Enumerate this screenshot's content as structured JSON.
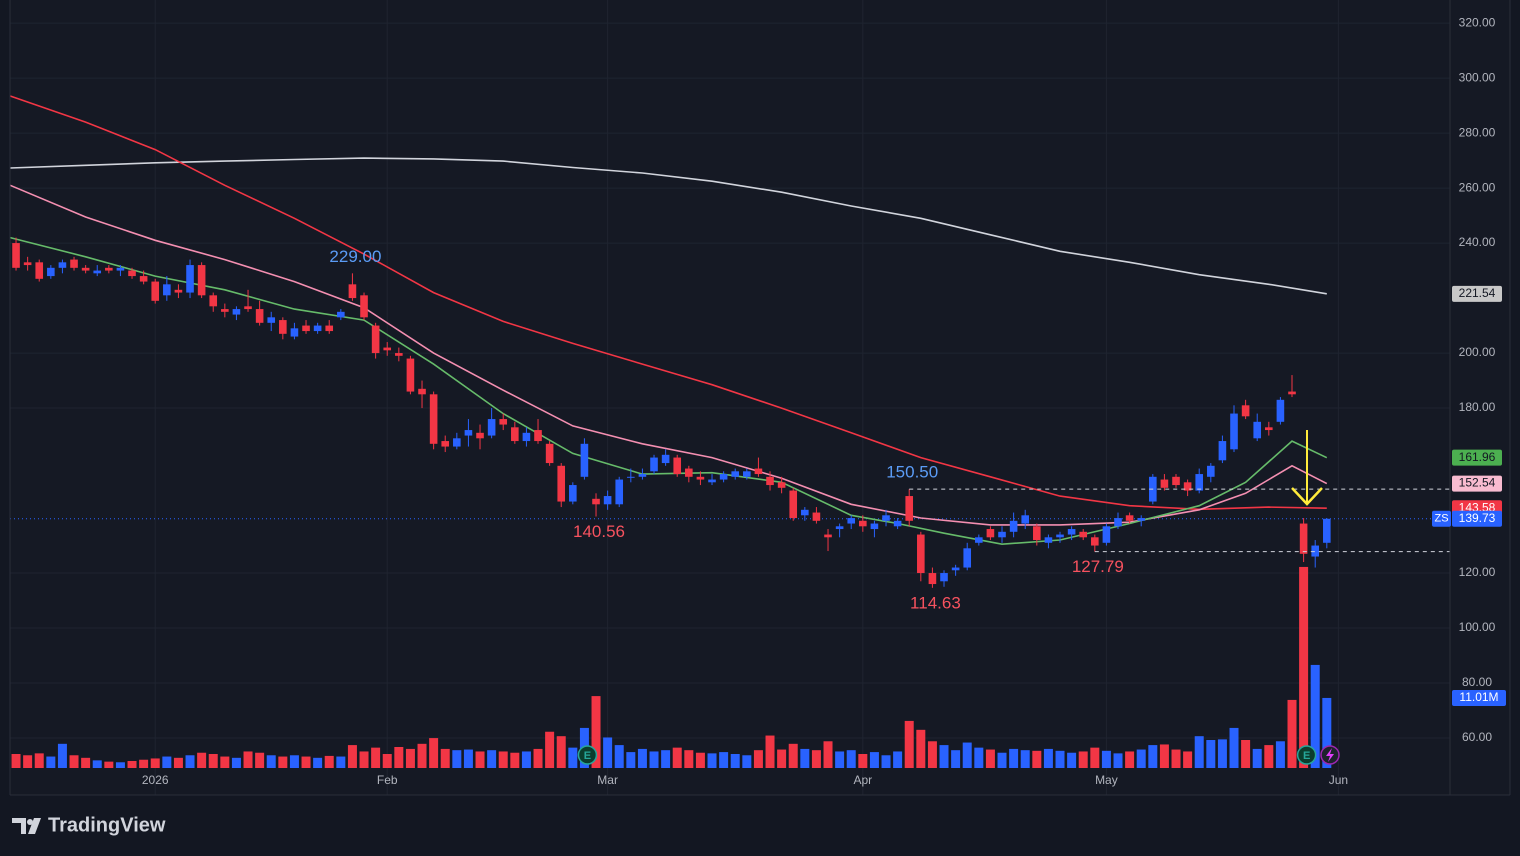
{
  "chart_data": {
    "type": "candlestick",
    "symbol": "ZS",
    "brand": "TradingView",
    "up_color": "#2962ff",
    "down_color": "#f23645",
    "grid": true,
    "xlim": [
      -0.52,
      123.62
    ],
    "xticks": [
      {
        "value": 12,
        "label": "2026"
      },
      {
        "value": 32,
        "label": "Feb"
      },
      {
        "value": 51,
        "label": "Mar"
      },
      {
        "value": 73,
        "label": "Apr"
      },
      {
        "value": 94,
        "label": "May"
      },
      {
        "value": 114,
        "label": "Jun"
      }
    ],
    "ylim": [
      49.1,
      328.4
    ],
    "yticks": [
      {
        "value": 320,
        "label": "320.00"
      },
      {
        "value": 300,
        "label": "300.00"
      },
      {
        "value": 280,
        "label": "280.00"
      },
      {
        "value": 260,
        "label": "260.00"
      },
      {
        "value": 240,
        "label": "240.00"
      },
      {
        "value": 200,
        "label": "200.00"
      },
      {
        "value": 180,
        "label": "180.00"
      },
      {
        "value": 120,
        "label": "120.00"
      },
      {
        "value": 100,
        "label": "100.00"
      },
      {
        "value": 80,
        "label": "80.00"
      },
      {
        "value": 60,
        "label": "60.00"
      }
    ],
    "candles": [
      [
        240,
        242,
        230,
        231
      ],
      [
        233,
        235,
        230,
        232
      ],
      [
        233,
        234,
        226,
        227
      ],
      [
        228,
        232,
        227,
        231
      ],
      [
        231,
        234,
        229,
        233
      ],
      [
        234,
        235,
        230,
        231
      ],
      [
        231,
        232,
        229,
        230
      ],
      [
        229,
        232,
        228,
        230
      ],
      [
        231,
        232,
        229,
        230
      ],
      [
        230,
        232,
        228,
        231
      ],
      [
        230,
        231,
        227,
        228
      ],
      [
        228,
        230,
        225,
        226
      ],
      [
        226,
        227,
        218,
        219
      ],
      [
        221,
        228,
        219,
        225
      ],
      [
        223,
        225,
        220,
        222
      ],
      [
        222,
        234,
        220,
        232
      ],
      [
        232,
        233,
        220,
        221
      ],
      [
        221,
        222,
        215,
        217
      ],
      [
        216,
        218,
        213,
        215
      ],
      [
        214,
        217,
        212,
        216
      ],
      [
        217,
        223,
        215,
        216
      ],
      [
        216,
        219,
        210,
        211
      ],
      [
        211,
        215,
        208,
        213
      ],
      [
        212,
        213,
        205,
        207
      ],
      [
        206,
        211,
        205,
        209
      ],
      [
        210,
        212,
        207,
        208
      ],
      [
        208,
        211,
        207,
        210
      ],
      [
        210,
        212,
        207,
        208
      ],
      [
        213,
        216,
        212,
        215
      ],
      [
        225,
        229,
        219,
        220
      ],
      [
        221,
        222,
        212,
        213
      ],
      [
        210,
        211,
        198,
        200
      ],
      [
        202,
        204,
        199,
        201
      ],
      [
        200,
        202,
        197,
        199
      ],
      [
        198,
        199,
        185,
        186
      ],
      [
        187,
        190,
        180,
        185
      ],
      [
        185,
        186,
        165,
        167
      ],
      [
        168,
        170,
        164,
        166
      ],
      [
        166,
        171,
        165,
        169
      ],
      [
        170,
        176,
        166,
        172
      ],
      [
        171,
        174,
        165,
        169
      ],
      [
        170,
        180,
        169,
        176
      ],
      [
        176,
        178,
        172,
        174
      ],
      [
        173,
        175,
        167,
        168
      ],
      [
        168,
        173,
        166,
        171
      ],
      [
        172,
        176,
        167,
        168
      ],
      [
        167,
        168,
        159,
        160
      ],
      [
        159,
        160,
        144,
        146
      ],
      [
        146,
        153,
        145,
        152
      ],
      [
        155,
        169,
        154,
        167
      ],
      [
        147,
        149,
        140.56,
        145
      ],
      [
        145,
        150,
        143,
        148
      ],
      [
        145,
        155,
        144,
        154
      ],
      [
        155,
        158,
        153,
        155
      ],
      [
        155,
        158,
        154,
        156
      ],
      [
        157,
        163,
        156,
        162
      ],
      [
        160,
        165,
        159,
        163
      ],
      [
        162,
        163,
        155,
        156
      ],
      [
        158,
        159,
        153,
        155
      ],
      [
        155,
        157,
        152,
        154
      ],
      [
        153,
        156,
        152,
        154
      ],
      [
        154,
        157,
        153,
        156
      ],
      [
        155,
        158,
        154,
        157
      ],
      [
        155,
        158,
        154,
        157
      ],
      [
        158,
        162,
        155,
        156
      ],
      [
        155,
        157,
        150,
        152
      ],
      [
        153,
        155,
        149,
        151
      ],
      [
        150,
        151,
        139,
        140
      ],
      [
        141,
        144,
        139,
        143
      ],
      [
        142,
        144,
        138,
        139
      ],
      [
        134,
        136,
        128,
        133
      ],
      [
        136,
        138,
        133,
        137
      ],
      [
        138,
        141,
        136,
        140
      ],
      [
        139,
        141,
        135,
        137
      ],
      [
        136,
        139,
        133,
        138
      ],
      [
        139,
        143,
        137,
        141
      ],
      [
        137,
        140,
        136,
        139
      ],
      [
        148,
        150.5,
        137,
        139
      ],
      [
        134,
        135,
        117,
        120
      ],
      [
        120,
        122,
        114.63,
        116
      ],
      [
        117,
        121,
        115,
        120
      ],
      [
        121,
        123,
        119,
        122
      ],
      [
        122,
        131,
        121,
        129
      ],
      [
        131,
        134,
        130,
        133
      ],
      [
        136,
        137,
        132,
        133
      ],
      [
        133,
        137,
        131,
        135
      ],
      [
        135,
        142,
        133,
        139
      ],
      [
        138,
        143,
        136,
        141
      ],
      [
        137,
        138,
        130,
        132
      ],
      [
        131,
        134,
        129,
        133
      ],
      [
        133,
        135,
        131,
        134
      ],
      [
        134,
        137,
        132,
        136
      ],
      [
        135,
        136,
        132,
        133
      ],
      [
        133,
        134,
        127.79,
        130
      ],
      [
        131,
        138,
        130,
        137
      ],
      [
        137,
        142,
        136,
        140
      ],
      [
        141,
        142,
        138,
        139
      ],
      [
        139,
        141,
        137,
        140
      ],
      [
        146,
        156,
        145,
        155
      ],
      [
        154,
        156,
        150,
        151
      ],
      [
        155,
        156,
        151,
        152
      ],
      [
        153,
        154,
        148,
        150
      ],
      [
        150,
        158,
        149,
        156
      ],
      [
        155,
        160,
        153,
        159
      ],
      [
        161,
        170,
        160,
        168
      ],
      [
        165,
        181,
        164,
        178
      ],
      [
        181,
        183,
        176,
        177
      ],
      [
        169,
        178,
        168,
        175
      ],
      [
        173,
        175,
        170,
        172
      ],
      [
        175,
        184,
        174,
        183
      ],
      [
        186,
        192,
        184,
        185
      ],
      [
        138,
        140,
        124,
        127
      ],
      [
        126,
        132,
        122,
        130
      ],
      [
        131,
        140,
        129,
        139.73
      ]
    ],
    "volume": {
      "ylim": [
        0,
        120.7
      ],
      "label": "11.01M",
      "values": [
        2.2,
        2.0,
        2.3,
        1.8,
        3.8,
        2.0,
        1.6,
        1.2,
        1.0,
        0.9,
        1.1,
        1.3,
        1.5,
        1.8,
        1.6,
        2.0,
        2.4,
        2.2,
        1.8,
        1.6,
        2.6,
        2.4,
        2.0,
        1.8,
        2.0,
        1.8,
        1.6,
        1.9,
        1.8,
        3.6,
        2.6,
        3.2,
        2.2,
        3.3,
        3.0,
        3.8,
        4.7,
        3.0,
        2.8,
        2.9,
        2.6,
        2.8,
        2.6,
        2.4,
        2.6,
        3.0,
        5.7,
        5.0,
        3.2,
        6.3,
        11.3,
        4.8,
        3.6,
        2.5,
        3.0,
        2.6,
        2.8,
        3.2,
        2.8,
        2.4,
        2.3,
        2.5,
        2.2,
        2.0,
        2.8,
        5.1,
        2.9,
        3.8,
        3.0,
        2.8,
        4.2,
        2.6,
        2.8,
        2.2,
        2.5,
        2.0,
        2.6,
        7.4,
        6.0,
        4.2,
        3.6,
        2.8,
        4.0,
        3.2,
        2.9,
        2.4,
        3.0,
        2.8,
        2.7,
        3.0,
        2.7,
        2.4,
        2.6,
        3.2,
        2.7,
        2.3,
        2.6,
        2.9,
        3.6,
        3.7,
        2.9,
        2.6,
        5.0,
        4.4,
        4.5,
        6.3,
        4.4,
        3.0,
        3.6,
        4.2,
        10.7,
        31.6,
        16.2,
        11.01
      ]
    },
    "series": [
      {
        "color": "#d1d4dc",
        "label_color": "#c8c8c8",
        "x": [
          -0.5,
          6,
          12,
          18,
          24,
          30,
          36,
          42,
          48,
          54,
          60,
          66,
          72,
          78,
          84,
          90,
          96,
          102,
          108,
          113
        ],
        "values": [
          267.3,
          268.3,
          269.2,
          269.8,
          270.4,
          270.9,
          270.6,
          269.8,
          267.5,
          265.5,
          262.5,
          258.5,
          253.5,
          249,
          243,
          237,
          233,
          228.5,
          225,
          221.54
        ]
      },
      {
        "color": "#f23645",
        "label_color": "#f23645",
        "x": [
          -0.5,
          6,
          12,
          18,
          24,
          30,
          36,
          42,
          48,
          54,
          60,
          66,
          72,
          78,
          84,
          90,
          96,
          102,
          108,
          113
        ],
        "values": [
          293.5,
          284,
          274,
          261,
          249,
          236,
          222,
          211.5,
          203.5,
          196,
          188.5,
          180,
          171,
          162,
          155,
          148,
          144.5,
          143.2,
          144,
          143.58
        ]
      },
      {
        "color": "#f48fb1",
        "label_color": "#f8bbd0",
        "x": [
          -0.5,
          6,
          12,
          18,
          24,
          30,
          36,
          42,
          48,
          54,
          60,
          66,
          72,
          78,
          84,
          90,
          96,
          102,
          106,
          110,
          113
        ],
        "values": [
          261,
          249.5,
          241,
          234,
          226,
          216.5,
          200,
          186.5,
          173.5,
          167,
          162,
          154.5,
          145,
          140,
          137.5,
          137.5,
          138.5,
          143,
          149,
          159,
          152.54
        ]
      },
      {
        "color": "#66bb6a",
        "label_color": "#4caf50",
        "x": [
          -0.5,
          6,
          12,
          18,
          24,
          30,
          36,
          42,
          48,
          54,
          60,
          66,
          72,
          76,
          80,
          85,
          90,
          96,
          102,
          106,
          110,
          113
        ],
        "values": [
          242,
          235,
          228,
          223,
          216,
          212,
          196,
          178,
          163.5,
          156,
          156.5,
          153,
          141,
          138,
          134.5,
          130.5,
          132,
          138,
          144.5,
          153,
          168,
          161.96
        ]
      }
    ],
    "annotations": [
      {
        "x": 29,
        "value": 229,
        "label": "229.00",
        "color": "#5b9cf6",
        "dashed": false
      },
      {
        "x": 50,
        "value": 140.56,
        "label": "140.56",
        "color": "#f7525f",
        "dashed": false
      },
      {
        "x": 77,
        "value": 150.5,
        "label": "150.50",
        "color": "#5b9cf6",
        "dashed": true
      },
      {
        "x": 79,
        "value": 114.63,
        "label": "114.63",
        "color": "#f7525f",
        "dashed": false
      },
      {
        "x": 93,
        "value": 127.79,
        "label": "127.79",
        "color": "#f7525f",
        "dashed": true
      }
    ],
    "events": [
      {
        "x": 49,
        "label": "E"
      },
      {
        "x": 111,
        "label": "E"
      }
    ]
  }
}
